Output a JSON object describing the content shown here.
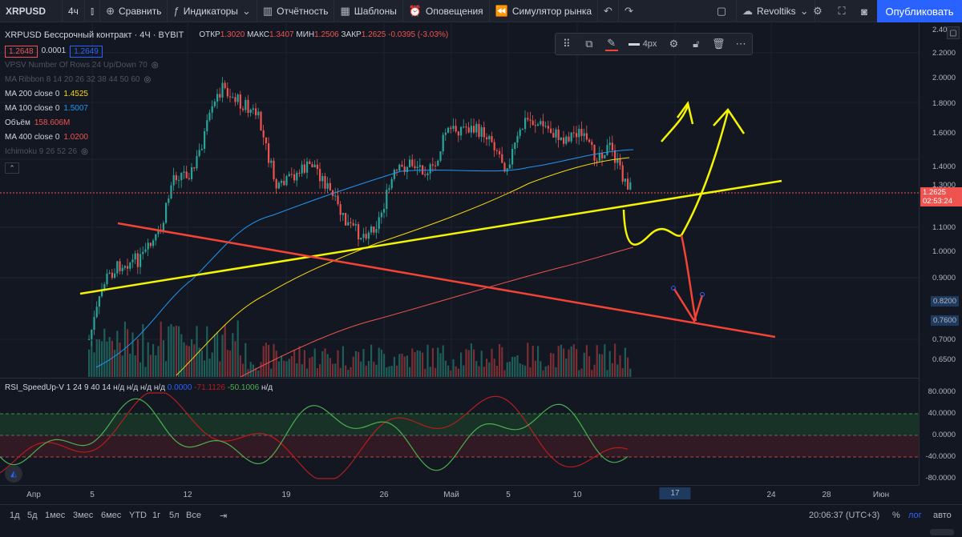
{
  "topbar": {
    "symbol": "XRPUSD",
    "interval": "4ч",
    "compare": "Сравнить",
    "indicators": "Индикаторы",
    "reports": "Отчётность",
    "templates": "Шаблоны",
    "alerts": "Оповещения",
    "replay": "Симулятор рынка",
    "layout_name": "Revoltiks",
    "publish": "Опубликовать"
  },
  "header": {
    "title": "XRPUSD Бессрочный контракт · 4Ч · BYBIT",
    "open_label": "ОТКР",
    "open": "1.3020",
    "high_label": "МАКС",
    "high": "1.3407",
    "low_label": "МИН",
    "low": "1.2506",
    "close_label": "ЗАКР",
    "close": "1.2625",
    "change": "-0.0395 (-3.03%)",
    "bid": "1.2648",
    "spread": "0.0001",
    "ask": "1.2649"
  },
  "indicators": [
    {
      "name": "VPSV Number Of Rows 24 Up/Down 70",
      "value": "",
      "color": "#50535e",
      "hidden": true
    },
    {
      "name": "MA Ribbon 8 14 20 26 32 38 44 50 60",
      "value": "",
      "color": "#50535e",
      "hidden": true
    },
    {
      "name": "MA 200 close 0",
      "value": "1.4525",
      "color": "#f5d90a"
    },
    {
      "name": "MA 100 close 0",
      "value": "1.5007",
      "color": "#2196f3"
    },
    {
      "name": "Объём",
      "value": "158.606M",
      "color": "#ef5350"
    },
    {
      "name": "MA 400 close 0",
      "value": "1.0200",
      "color": "#ef5350"
    },
    {
      "name": "Ichimoku 9 26 52 26",
      "value": "",
      "color": "#50535e",
      "hidden": true
    }
  ],
  "drawing_toolbar": {
    "width_label": "4px"
  },
  "price_axis": {
    "labels": [
      "2.4000",
      "2.2000",
      "2.0000",
      "1.8000",
      "1.6000",
      "1.4000",
      "1.3000",
      "1.1000",
      "1.0000",
      "0.9000",
      "0.8200",
      "0.7600",
      "0.7000",
      "0.6500"
    ],
    "current_price": "1.2625",
    "countdown": "02:53:24"
  },
  "rsi": {
    "title": "RSI_SpeedUp-V 1 24 9 40 14",
    "nd": "н/д",
    "v1": "0.0000",
    "v2": "-71.1126",
    "v3": "-50.1006",
    "axis": [
      "80.0000",
      "40.0000",
      "0.0000",
      "-40.0000",
      "-80.0000"
    ]
  },
  "time_axis": [
    "Апр",
    "5",
    "12",
    "19",
    "26",
    "Май",
    "5",
    "10",
    "17",
    "24",
    "28",
    "Июн"
  ],
  "time_axis_highlight": "17",
  "bottombar": {
    "ranges": [
      "1д",
      "5д",
      "1мес",
      "3мес",
      "6мес",
      "YTD",
      "1г",
      "5л",
      "Все"
    ],
    "clock": "20:06:37 (UTC+3)",
    "percent": "%",
    "log": "лог",
    "auto": "авто"
  },
  "colors": {
    "bg": "#131722",
    "up": "#26a69a",
    "down": "#ef5350",
    "accent": "#2962ff",
    "yellow": "#f5f500",
    "red": "#f44336"
  }
}
